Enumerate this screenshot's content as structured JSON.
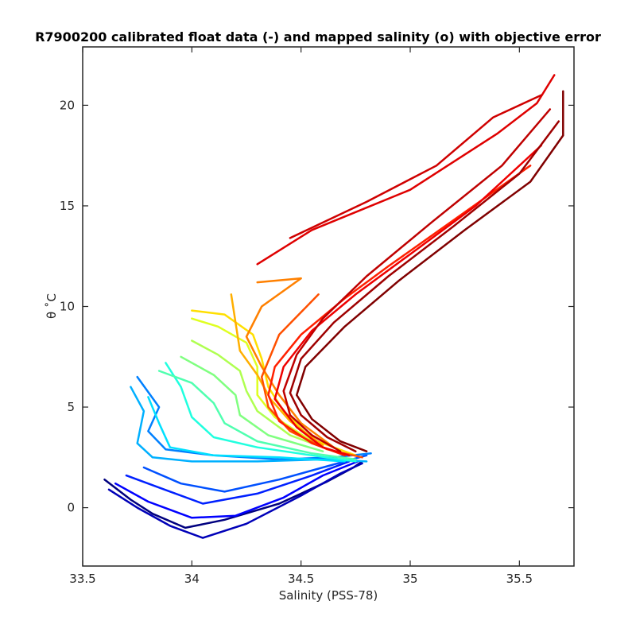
{
  "chart_data": {
    "type": "line",
    "title": "R7900200 calibrated float data (-) and mapped salinity (o) with objective error",
    "xlabel": "Salinity (PSS-78)",
    "ylabel": "θ ˚C",
    "xlim": [
      33.5,
      35.75
    ],
    "ylim": [
      -2.9,
      22.9
    ],
    "xticks": [
      "33.5",
      "34",
      "34.5",
      "35",
      "35.5"
    ],
    "xtick_values": [
      33.5,
      34.0,
      34.5,
      35.0,
      35.5
    ],
    "yticks": [
      "0",
      "5",
      "10",
      "15",
      "20"
    ],
    "ytick_values": [
      0,
      5,
      10,
      15,
      20
    ],
    "colormap": "jet",
    "grid": false,
    "legend": "none",
    "series": [
      {
        "color": "#00007f",
        "points": [
          [
            33.6,
            1.4
          ],
          [
            33.72,
            0.4
          ],
          [
            33.82,
            -0.3
          ],
          [
            33.97,
            -1.0
          ],
          [
            34.15,
            -0.6
          ],
          [
            34.4,
            0.2
          ],
          [
            34.62,
            1.3
          ],
          [
            34.74,
            2.0
          ],
          [
            34.78,
            2.3
          ]
        ]
      },
      {
        "color": "#0000b8",
        "points": [
          [
            33.62,
            0.9
          ],
          [
            33.75,
            0.0
          ],
          [
            33.9,
            -0.9
          ],
          [
            34.05,
            -1.5
          ],
          [
            34.25,
            -0.8
          ],
          [
            34.5,
            0.6
          ],
          [
            34.68,
            1.7
          ],
          [
            34.78,
            2.2
          ]
        ]
      },
      {
        "color": "#0000ff",
        "points": [
          [
            33.65,
            1.2
          ],
          [
            33.8,
            0.3
          ],
          [
            34.0,
            -0.5
          ],
          [
            34.2,
            -0.4
          ],
          [
            34.42,
            0.5
          ],
          [
            34.6,
            1.6
          ],
          [
            34.76,
            2.3
          ]
        ]
      },
      {
        "color": "#0020ff",
        "points": [
          [
            33.7,
            1.6
          ],
          [
            33.85,
            1.0
          ],
          [
            34.05,
            0.2
          ],
          [
            34.3,
            0.7
          ],
          [
            34.55,
            1.6
          ],
          [
            34.72,
            2.3
          ]
        ]
      },
      {
        "color": "#0050ff",
        "points": [
          [
            33.78,
            2.0
          ],
          [
            33.95,
            1.2
          ],
          [
            34.15,
            0.8
          ],
          [
            34.4,
            1.4
          ],
          [
            34.6,
            2.0
          ],
          [
            34.8,
            2.6
          ]
        ]
      },
      {
        "color": "#0080ff",
        "points": [
          [
            33.75,
            6.5
          ],
          [
            33.85,
            5.0
          ],
          [
            33.8,
            3.8
          ],
          [
            33.88,
            2.9
          ],
          [
            34.1,
            2.6
          ],
          [
            34.4,
            2.4
          ],
          [
            34.65,
            2.5
          ],
          [
            34.82,
            2.7
          ]
        ]
      },
      {
        "color": "#00b0ff",
        "points": [
          [
            33.72,
            6.0
          ],
          [
            33.78,
            4.8
          ],
          [
            33.75,
            3.2
          ],
          [
            33.82,
            2.5
          ],
          [
            34.0,
            2.3
          ],
          [
            34.3,
            2.3
          ],
          [
            34.6,
            2.4
          ],
          [
            34.8,
            2.3
          ]
        ]
      },
      {
        "color": "#00e0ff",
        "points": [
          [
            33.8,
            5.5
          ],
          [
            33.85,
            4.2
          ],
          [
            33.9,
            3.0
          ],
          [
            34.1,
            2.6
          ],
          [
            34.4,
            2.5
          ],
          [
            34.7,
            2.3
          ]
        ]
      },
      {
        "color": "#20ffdf",
        "points": [
          [
            33.88,
            7.2
          ],
          [
            33.95,
            6.0
          ],
          [
            34.0,
            4.5
          ],
          [
            34.1,
            3.5
          ],
          [
            34.3,
            3.0
          ],
          [
            34.55,
            2.6
          ],
          [
            34.75,
            2.3
          ]
        ]
      },
      {
        "color": "#50ffaf",
        "points": [
          [
            33.85,
            6.8
          ],
          [
            34.0,
            6.2
          ],
          [
            34.1,
            5.2
          ],
          [
            34.15,
            4.2
          ],
          [
            34.3,
            3.3
          ],
          [
            34.55,
            2.7
          ],
          [
            34.75,
            2.4
          ]
        ]
      },
      {
        "color": "#80ff80",
        "points": [
          [
            33.95,
            7.5
          ],
          [
            34.1,
            6.6
          ],
          [
            34.2,
            5.6
          ],
          [
            34.22,
            4.6
          ],
          [
            34.35,
            3.6
          ],
          [
            34.6,
            2.8
          ]
        ]
      },
      {
        "color": "#afff50",
        "points": [
          [
            34.0,
            8.3
          ],
          [
            34.12,
            7.6
          ],
          [
            34.22,
            6.8
          ],
          [
            34.25,
            5.8
          ],
          [
            34.3,
            4.8
          ],
          [
            34.45,
            3.6
          ],
          [
            34.65,
            2.8
          ]
        ]
      },
      {
        "color": "#dfff20",
        "points": [
          [
            34.0,
            9.4
          ],
          [
            34.12,
            9.0
          ],
          [
            34.25,
            8.2
          ],
          [
            34.3,
            7.0
          ],
          [
            34.3,
            5.6
          ],
          [
            34.38,
            4.5
          ],
          [
            34.55,
            3.3
          ]
        ]
      },
      {
        "color": "#ffdf00",
        "points": [
          [
            34.0,
            9.8
          ],
          [
            34.15,
            9.6
          ],
          [
            34.28,
            8.6
          ],
          [
            34.32,
            7.4
          ],
          [
            34.35,
            6.0
          ],
          [
            34.42,
            4.8
          ],
          [
            34.55,
            3.4
          ],
          [
            34.75,
            2.6
          ]
        ]
      },
      {
        "color": "#ffaf00",
        "points": [
          [
            34.18,
            10.6
          ],
          [
            34.2,
            9.2
          ],
          [
            34.22,
            7.8
          ],
          [
            34.3,
            6.6
          ],
          [
            34.36,
            5.4
          ],
          [
            34.45,
            4.3
          ],
          [
            34.6,
            3.1
          ]
        ]
      },
      {
        "color": "#ff8000",
        "points": [
          [
            34.3,
            11.2
          ],
          [
            34.5,
            11.4
          ],
          [
            34.32,
            10.0
          ],
          [
            34.25,
            8.5
          ],
          [
            34.32,
            7.0
          ],
          [
            34.4,
            5.6
          ],
          [
            34.5,
            4.2
          ],
          [
            34.65,
            3.0
          ]
        ]
      },
      {
        "color": "#ff5000",
        "points": [
          [
            34.58,
            10.6
          ],
          [
            34.4,
            8.6
          ],
          [
            34.32,
            6.5
          ],
          [
            34.35,
            5.0
          ],
          [
            34.45,
            3.8
          ],
          [
            34.62,
            2.9
          ],
          [
            34.78,
            2.5
          ]
        ]
      },
      {
        "color": "#ff2000",
        "points": [
          [
            35.55,
            17.0
          ],
          [
            35.2,
            14.3
          ],
          [
            34.9,
            12.0
          ],
          [
            34.7,
            10.4
          ],
          [
            34.5,
            8.6
          ],
          [
            34.38,
            7.0
          ],
          [
            34.35,
            5.6
          ],
          [
            34.4,
            4.3
          ],
          [
            34.55,
            3.2
          ],
          [
            34.7,
            2.6
          ]
        ]
      },
      {
        "color": "#ef0000",
        "points": [
          [
            35.6,
            18.0
          ],
          [
            35.3,
            15.0
          ],
          [
            35.0,
            12.6
          ],
          [
            34.75,
            10.6
          ],
          [
            34.55,
            8.8
          ],
          [
            34.42,
            7.0
          ],
          [
            34.38,
            5.4
          ],
          [
            34.48,
            4.0
          ],
          [
            34.6,
            3.0
          ],
          [
            34.72,
            2.6
          ]
        ]
      },
      {
        "color": "#df0000",
        "points": [
          [
            34.3,
            12.1
          ],
          [
            34.55,
            13.8
          ],
          [
            35.0,
            15.8
          ],
          [
            35.4,
            18.6
          ],
          [
            35.58,
            20.1
          ],
          [
            35.66,
            21.5
          ]
        ]
      },
      {
        "color": "#cf0000",
        "points": [
          [
            34.45,
            13.4
          ],
          [
            34.8,
            15.2
          ],
          [
            35.12,
            17.0
          ],
          [
            35.38,
            19.4
          ],
          [
            35.6,
            20.5
          ]
        ]
      },
      {
        "color": "#bf0000",
        "points": [
          [
            35.64,
            19.8
          ],
          [
            35.42,
            17.0
          ],
          [
            35.1,
            14.2
          ],
          [
            34.8,
            11.5
          ],
          [
            34.6,
            9.4
          ],
          [
            34.48,
            7.6
          ],
          [
            34.42,
            5.8
          ],
          [
            34.45,
            4.6
          ],
          [
            34.55,
            3.6
          ],
          [
            34.68,
            2.8
          ]
        ]
      },
      {
        "color": "#9f0000",
        "points": [
          [
            35.68,
            19.2
          ],
          [
            35.5,
            16.6
          ],
          [
            35.2,
            14.0
          ],
          [
            34.9,
            11.5
          ],
          [
            34.65,
            9.2
          ],
          [
            34.5,
            7.4
          ],
          [
            34.45,
            5.7
          ],
          [
            34.5,
            4.6
          ],
          [
            34.62,
            3.5
          ],
          [
            34.75,
            2.8
          ]
        ]
      },
      {
        "color": "#800000",
        "points": [
          [
            35.7,
            20.7
          ],
          [
            35.7,
            18.5
          ],
          [
            35.55,
            16.2
          ],
          [
            35.25,
            13.8
          ],
          [
            34.95,
            11.3
          ],
          [
            34.7,
            9.0
          ],
          [
            34.52,
            7.0
          ],
          [
            34.48,
            5.6
          ],
          [
            34.55,
            4.4
          ],
          [
            34.68,
            3.3
          ],
          [
            34.8,
            2.8
          ]
        ]
      }
    ]
  }
}
